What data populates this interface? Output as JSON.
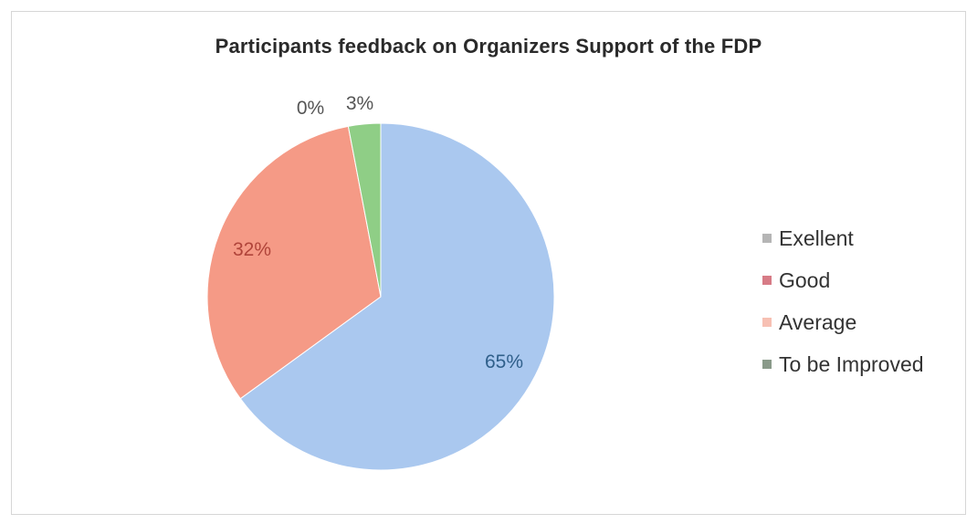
{
  "chart_data": {
    "type": "pie",
    "title": "Participants feedback on Organizers Support of the FDP",
    "categories": [
      "Exellent",
      "Good",
      "Average",
      "To be Improved"
    ],
    "values": [
      65,
      0,
      32,
      3
    ],
    "data_labels": [
      "65%",
      "0%",
      "32%",
      "3%"
    ],
    "legend_position": "right",
    "colors": [
      "#aac8ef",
      "#e58a95",
      "#f59a86",
      "#8fce86"
    ]
  }
}
